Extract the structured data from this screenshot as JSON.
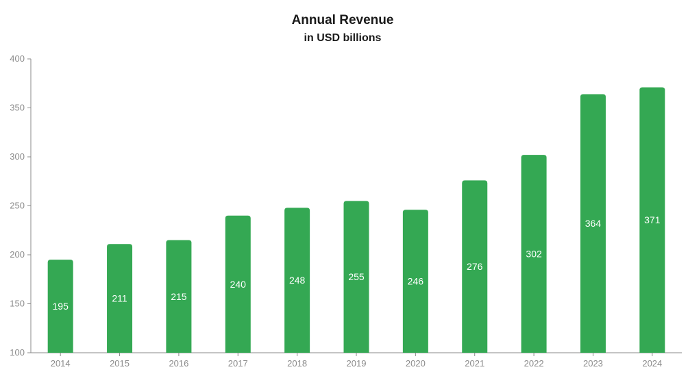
{
  "chart_data": {
    "type": "bar",
    "title": "Annual Revenue",
    "subtitle": "in USD billions",
    "xlabel": "",
    "ylabel": "",
    "categories": [
      "2014",
      "2015",
      "2016",
      "2017",
      "2018",
      "2019",
      "2020",
      "2021",
      "2022",
      "2023",
      "2024"
    ],
    "values": [
      195,
      211,
      215,
      240,
      248,
      255,
      246,
      276,
      302,
      364,
      371
    ],
    "ylim": [
      100,
      400
    ],
    "yticks": [
      100,
      150,
      200,
      250,
      300,
      350,
      400
    ],
    "grid": false,
    "legend": "none",
    "bar_color": "#34a853",
    "data_label_color": "#ffffff",
    "axis_color": "#8a8a8a"
  }
}
